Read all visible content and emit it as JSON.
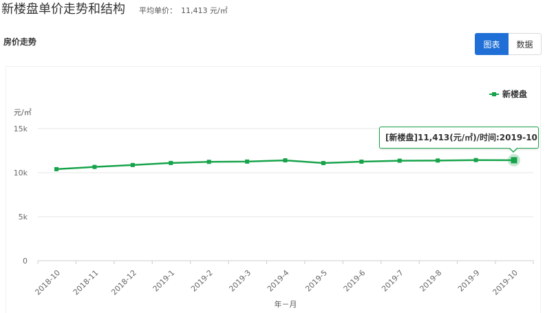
{
  "header": {
    "title": "新楼盘单价走势和结构",
    "avg_label": "平均单价：",
    "avg_value": "11,413 元/㎡"
  },
  "section": {
    "title": "房价走势"
  },
  "view_toggle": {
    "chart_label": "图表",
    "data_label": "数据"
  },
  "colors": {
    "series": "#16a34a",
    "accent": "#1f6fd6"
  },
  "tooltip": {
    "text": "[新楼盘]11,413(元/㎡)/时间:2019-10"
  },
  "chart_data": {
    "type": "line",
    "xlabel": "年－月",
    "ylabel": "元/㎡",
    "ylim": [
      0,
      15000
    ],
    "yticks": [
      0,
      5000,
      10000,
      15000
    ],
    "ytick_labels": [
      "0",
      "5k",
      "10k",
      "15k"
    ],
    "grid": true,
    "legend": "top-right",
    "categories": [
      "2018-10",
      "2018-11",
      "2018-12",
      "2019-1",
      "2019-2",
      "2019-3",
      "2019-4",
      "2019-5",
      "2019-6",
      "2019-7",
      "2019-8",
      "2019-9",
      "2019-10"
    ],
    "series": [
      {
        "name": "新楼盘",
        "values": [
          10400,
          10650,
          10870,
          11100,
          11230,
          11260,
          11400,
          11090,
          11250,
          11360,
          11380,
          11430,
          11413
        ]
      }
    ]
  }
}
